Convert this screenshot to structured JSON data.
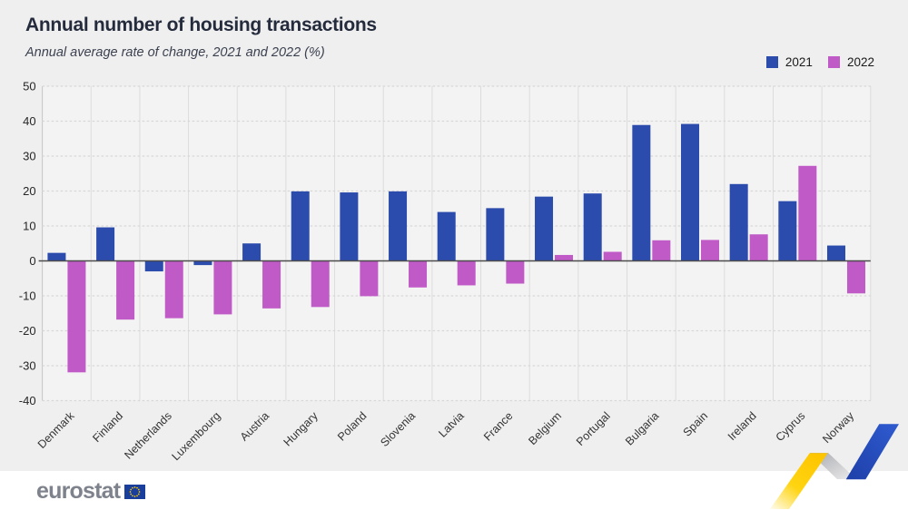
{
  "page": {
    "background": "#efefef",
    "footer_background": "#ffffff"
  },
  "footer": {
    "logo_text": "eurostat"
  },
  "colors": {
    "series_2021": "#2b4bad",
    "series_2022": "#c05ac6",
    "zero_line": "#4c4c4c",
    "gridline_dashed": "#d7d7d7",
    "band_separator": "#dcdcdc",
    "plot_background": "#f3f3f3",
    "title_text": "#242b3c",
    "subtitle_text": "#3c4150",
    "axis_label": "#262626",
    "country_label": "#333333",
    "logo_text": "#7d828c",
    "flag_blue": "#1a3e9c",
    "flag_stars": "#ffcc00",
    "ribbon_yellow": "#ffd211",
    "ribbon_grey": "#b9babe",
    "ribbon_blue": "#2850c8"
  },
  "chart_data": {
    "type": "bar",
    "title": "Annual number of housing transactions",
    "subtitle": "Annual average rate of change, 2021 and 2022 (%)",
    "unit": "%",
    "categories": [
      "Denmark",
      "Finland",
      "Netherlands",
      "Luxembourg",
      "Austria",
      "Hungary",
      "Poland",
      "Slovenia",
      "Latvia",
      "France",
      "Belgium",
      "Portugal",
      "Bulgaria",
      "Spain",
      "Ireland",
      "Cyprus",
      "Norway"
    ],
    "series": [
      {
        "name": "2021",
        "color": "#2b4bad",
        "values": [
          2.3,
          9.6,
          -3.0,
          -1.2,
          5.0,
          19.9,
          19.6,
          19.9,
          14.0,
          15.1,
          18.4,
          19.3,
          38.9,
          39.2,
          22.0,
          17.1,
          4.4
        ]
      },
      {
        "name": "2022",
        "color": "#c05ac6",
        "values": [
          -31.9,
          -16.8,
          -16.4,
          -15.3,
          -13.6,
          -13.2,
          -10.1,
          -7.6,
          -7.0,
          -6.5,
          1.7,
          2.6,
          5.9,
          6.0,
          7.6,
          27.2,
          -9.3
        ]
      }
    ],
    "ylim": [
      -40,
      50
    ],
    "yticks": [
      50,
      40,
      30,
      20,
      10,
      0,
      -10,
      -20,
      -30,
      -40
    ],
    "grid": {
      "horizontal": "dashed every 10",
      "vertical": "solid separator per country"
    },
    "legend_position": "top-right"
  }
}
